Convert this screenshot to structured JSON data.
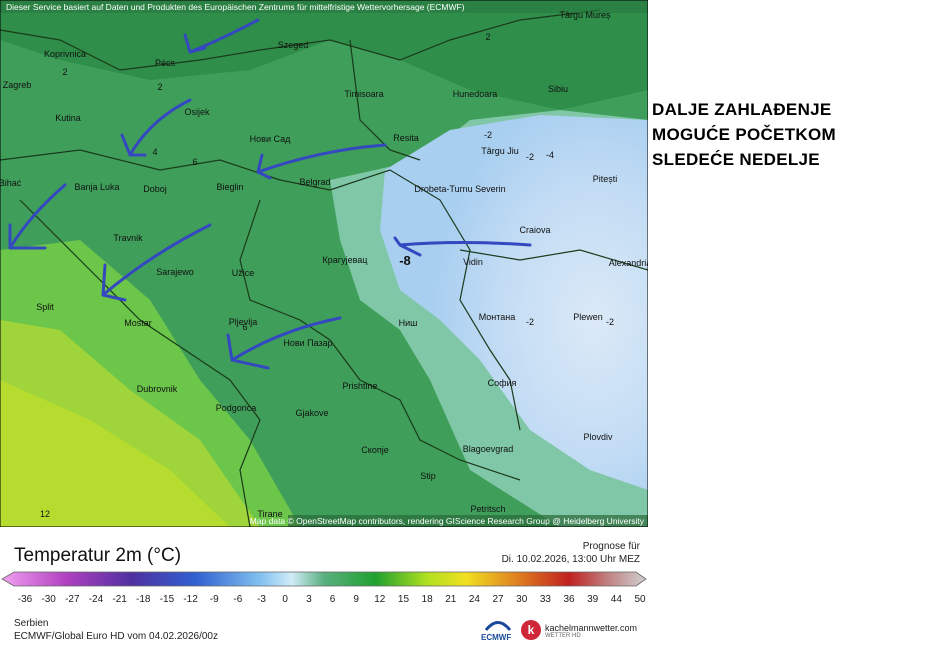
{
  "header": {
    "disclaimer": "Dieser Service basiert auf Daten und Produkten des Europäischen Zentrums für mittelfristige Wettervorhersage (ECMWF)",
    "attribution": "Map data © OpenStreetMap contributors, rendering GIScience Research Group @ Heidelberg University"
  },
  "annotation": {
    "lines": [
      "DALJE ZAHLAĐENJE",
      "MOGUĆE POČETKOM",
      "SLEDEĆE NEDELJE"
    ]
  },
  "map": {
    "cities": [
      "Târgu Mureș",
      "Koprivnica",
      "Pécs",
      "Szeged",
      "Zagreb",
      "Osijek",
      "Timisoara",
      "Hunedoara",
      "Sibiu",
      "Kutina",
      "Нови Сад",
      "Resita",
      "Târgu Jiu",
      "Pitești",
      "Bihać",
      "Banja Luka",
      "Doboj",
      "Bieglin",
      "Belgrad",
      "Drobeta-Turnu Severin",
      "Craiova",
      "Alexandria",
      "Travnik",
      "Крагујевац",
      "Vidin",
      "Sarajewo",
      "Užice",
      "Split",
      "Mostar",
      "Pljevlja",
      "Ниш",
      "Монтана",
      "Plewen",
      "Нови Пазар",
      "Dubrovnik",
      "Prishtine",
      "София",
      "Podgorica",
      "Gjakove",
      "Plovdiv",
      "Blagoevgrad",
      "Скопје",
      "Stip",
      "Tirane",
      "Petritsch"
    ],
    "contour_labels": [
      2,
      2,
      2,
      -2,
      -2,
      -4,
      -2,
      4,
      6,
      12,
      6,
      -2,
      -8
    ]
  },
  "legend": {
    "title": "Temperatur 2m (°C)",
    "ticks": [
      -36,
      -30,
      -27,
      -24,
      -21,
      -18,
      -15,
      -12,
      -9,
      -6,
      -3,
      0,
      3,
      6,
      9,
      12,
      15,
      18,
      21,
      24,
      27,
      30,
      33,
      36,
      39,
      44,
      50
    ],
    "forecast_label": "Prognose für",
    "forecast_time": "Di. 10.02.2026, 13:00 Uhr MEZ",
    "region": "Serbien",
    "model_run": "ECMWF/Global Euro HD vom  04.02.2026/00z",
    "ecmwf_logo": "ECMWF",
    "site": "kachelmannwetter.com",
    "site_sub": "WETTER HD"
  }
}
